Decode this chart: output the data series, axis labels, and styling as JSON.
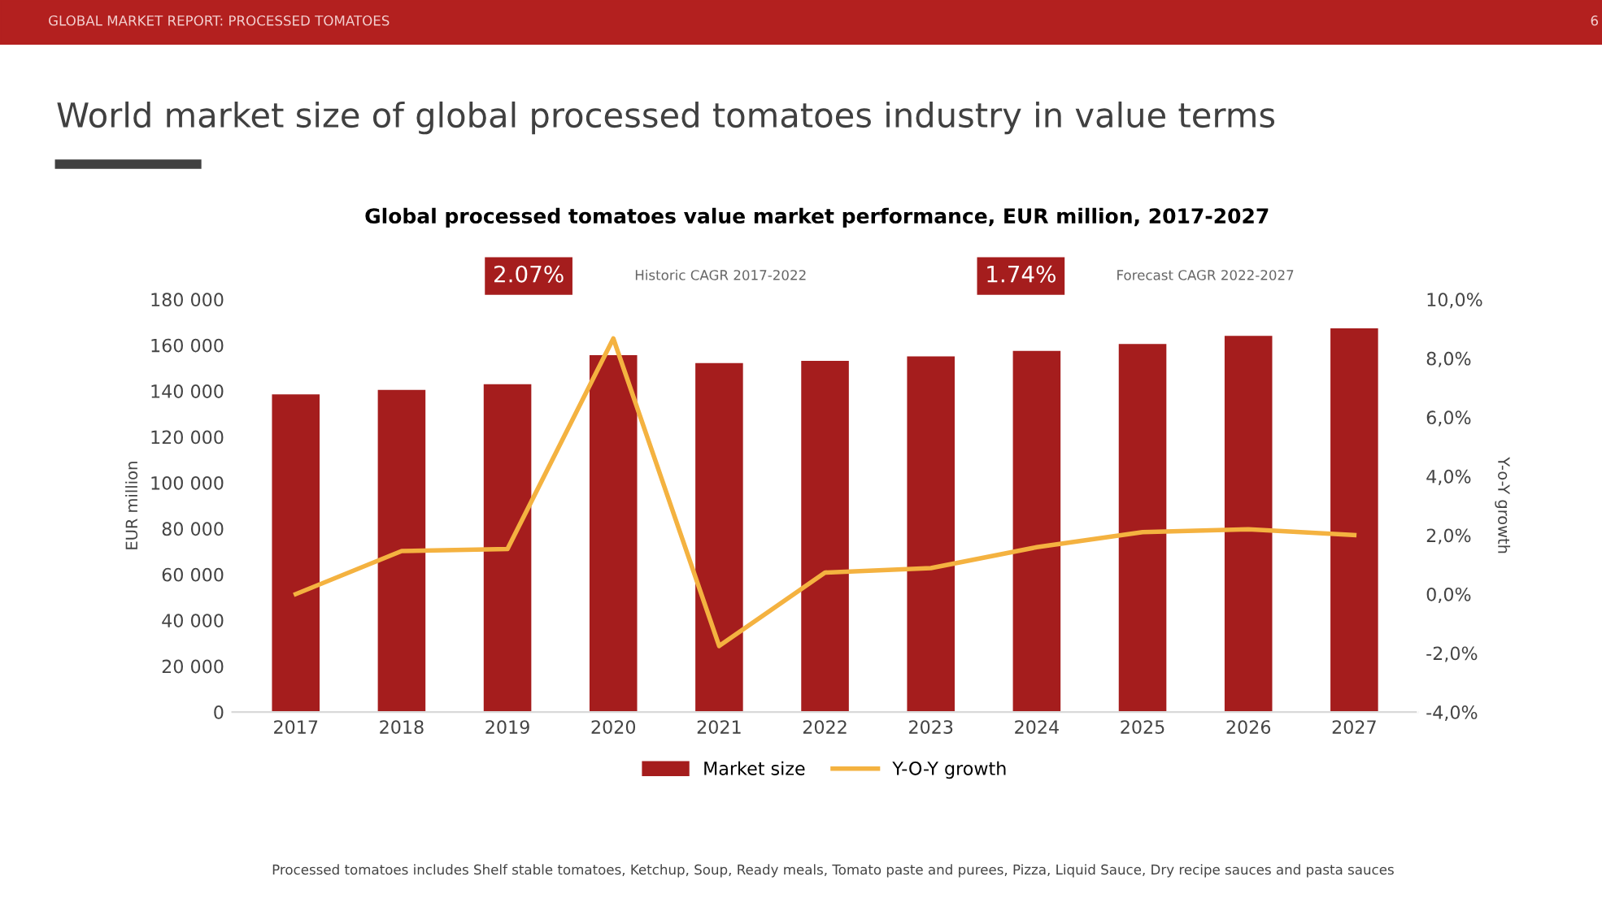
{
  "chart_data": {
    "type": "bar",
    "title": "World market size of global processed tomatoes industry in value terms",
    "subtitle": "Global processed tomatoes value market performance, EUR million, 2017-2027",
    "ylabel": "EUR million",
    "y2label": "Y-o-Y growth",
    "categories": [
      "2017",
      "2018",
      "2019",
      "2020",
      "2021",
      "2022",
      "2023",
      "2024",
      "2025",
      "2026",
      "2027"
    ],
    "series": [
      {
        "name": "Market size",
        "color": "#a51d1d",
        "values": [
          138500,
          140500,
          143000,
          155600,
          152200,
          153200,
          155100,
          157500,
          160500,
          164100,
          167300
        ]
      },
      {
        "name": "Y-O-Y growth",
        "type": "line",
        "axis": "y2",
        "color": "#f4b240",
        "values": [
          0.0,
          1.46,
          1.53,
          8.67,
          -1.76,
          0.73,
          0.88,
          1.59,
          2.1,
          2.2,
          2.0
        ]
      }
    ],
    "ylim": [
      0,
      180000
    ],
    "yticks": [
      {
        "value": 0,
        "label": "0"
      },
      {
        "value": 20000,
        "label": "20 000"
      },
      {
        "value": 40000,
        "label": "40 000"
      },
      {
        "value": 60000,
        "label": "60 000"
      },
      {
        "value": 80000,
        "label": "80 000"
      },
      {
        "value": 100000,
        "label": "100 000"
      },
      {
        "value": 120000,
        "label": "120 000"
      },
      {
        "value": 140000,
        "label": "140 000"
      },
      {
        "value": 160000,
        "label": "160 000"
      },
      {
        "value": 180000,
        "label": "180 000"
      }
    ],
    "y2lim": [
      -4,
      10
    ],
    "y2ticks": [
      {
        "value": -4,
        "label": "-4,0%"
      },
      {
        "value": -2,
        "label": "-2,0%"
      },
      {
        "value": 0,
        "label": "0,0%"
      },
      {
        "value": 2,
        "label": "2,0%"
      },
      {
        "value": 4,
        "label": "4,0%"
      },
      {
        "value": 6,
        "label": "6,0%"
      },
      {
        "value": 8,
        "label": "8,0%"
      },
      {
        "value": 10,
        "label": "10,0%"
      }
    ],
    "annotations": [
      "GLOBAL MARKET REPORT: PROCESSED TOMATOES",
      "6",
      "2.07%",
      "Historic CAGR 2017-2022",
      "1.74%",
      "Forecast CAGR 2022-2027",
      "Processed tomatoes includes Shelf stable tomatoes, Ketchup, Soup, Ready meals, Tomato paste and purees, Pizza, Liquid Sauce, Dry recipe sauces and pasta sauces"
    ],
    "legend": "bottom",
    "grid": false,
    "marker": "none",
    "line_style": "solid"
  }
}
